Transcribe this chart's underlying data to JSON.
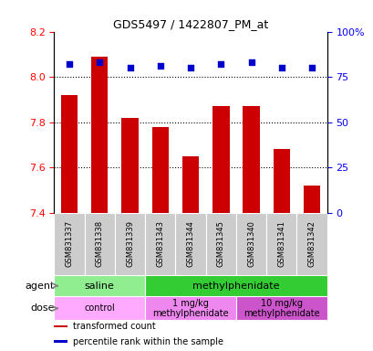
{
  "title": "GDS5497 / 1422807_PM_at",
  "samples": [
    "GSM831337",
    "GSM831338",
    "GSM831339",
    "GSM831343",
    "GSM831344",
    "GSM831345",
    "GSM831340",
    "GSM831341",
    "GSM831342"
  ],
  "bar_values": [
    7.92,
    8.09,
    7.82,
    7.78,
    7.65,
    7.87,
    7.87,
    7.68,
    7.52
  ],
  "percentile_values": [
    82,
    83,
    80,
    81,
    80,
    82,
    83,
    80,
    80
  ],
  "ylim": [
    7.4,
    8.2
  ],
  "yticks": [
    7.4,
    7.6,
    7.8,
    8.0,
    8.2
  ],
  "right_yticks": [
    0,
    25,
    50,
    75,
    100
  ],
  "right_ylabels": [
    "0",
    "25",
    "50",
    "75",
    "100%"
  ],
  "bar_color": "#cc0000",
  "dot_color": "#0000cc",
  "dot_size": 18,
  "agent_row": [
    {
      "label": "saline",
      "start": 0,
      "end": 3,
      "color": "#90ee90"
    },
    {
      "label": "methylphenidate",
      "start": 3,
      "end": 9,
      "color": "#33cc33"
    }
  ],
  "dose_row": [
    {
      "label": "control",
      "start": 0,
      "end": 3,
      "color": "#ffaaff"
    },
    {
      "label": "1 mg/kg\nmethylphenidate",
      "start": 3,
      "end": 6,
      "color": "#ee88ee"
    },
    {
      "label": "10 mg/kg\nmethylphenidate",
      "start": 6,
      "end": 9,
      "color": "#cc55cc"
    }
  ],
  "legend_items": [
    {
      "label": "transformed count",
      "color": "#cc0000"
    },
    {
      "label": "percentile rank within the sample",
      "color": "#0000cc"
    }
  ],
  "grid_values": [
    7.6,
    7.8,
    8.0
  ],
  "label_color": "#888888",
  "cell_color": "#cccccc"
}
